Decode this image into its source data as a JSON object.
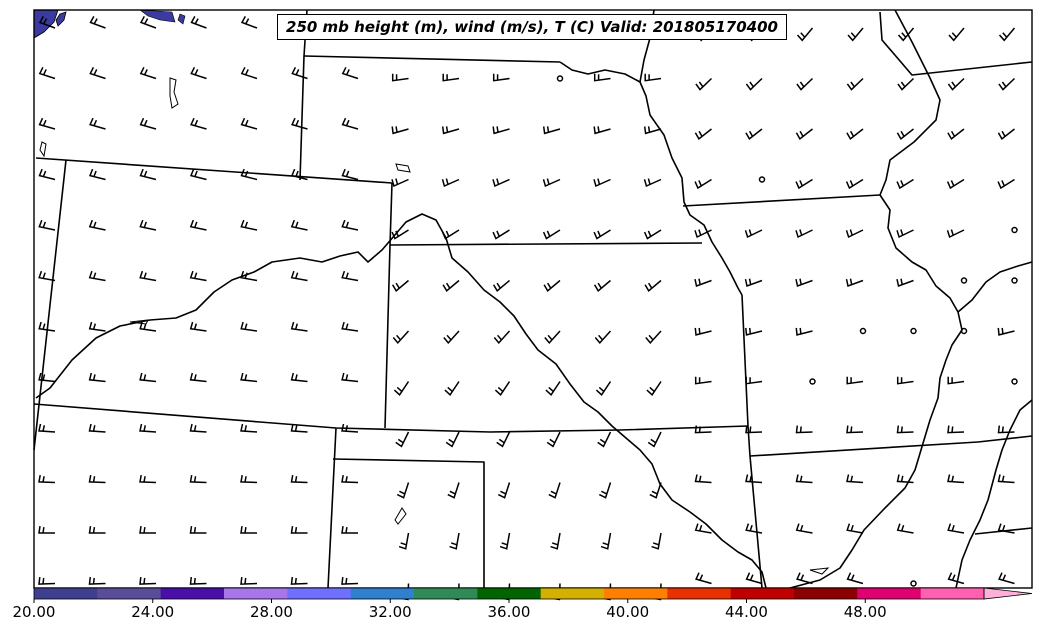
{
  "title": "250 mb height (m), wind (m/s), T (C) Valid: 201805170400",
  "colorbar": {
    "min": 20,
    "max": 52,
    "step": 2,
    "tick_labels": [
      "20.00",
      "24.00",
      "28.00",
      "32.00",
      "36.00",
      "40.00",
      "44.00",
      "48.00"
    ],
    "tick_values": [
      20,
      24,
      28,
      32,
      36,
      40,
      44,
      48
    ],
    "colors": [
      "#3f3f8f",
      "#5a4c99",
      "#4a0fa8",
      "#a875ea",
      "#7070ff",
      "#3080d0",
      "#2e8b57",
      "#006400",
      "#d4b000",
      "#ff8000",
      "#e83000",
      "#c00000",
      "#8b0000",
      "#e00070",
      "#ff60b0",
      "#ffb0d8"
    ],
    "extend": "max"
  },
  "map_colors": {
    "lake_fill": "#3a3aa0",
    "border": "#000000"
  }
}
